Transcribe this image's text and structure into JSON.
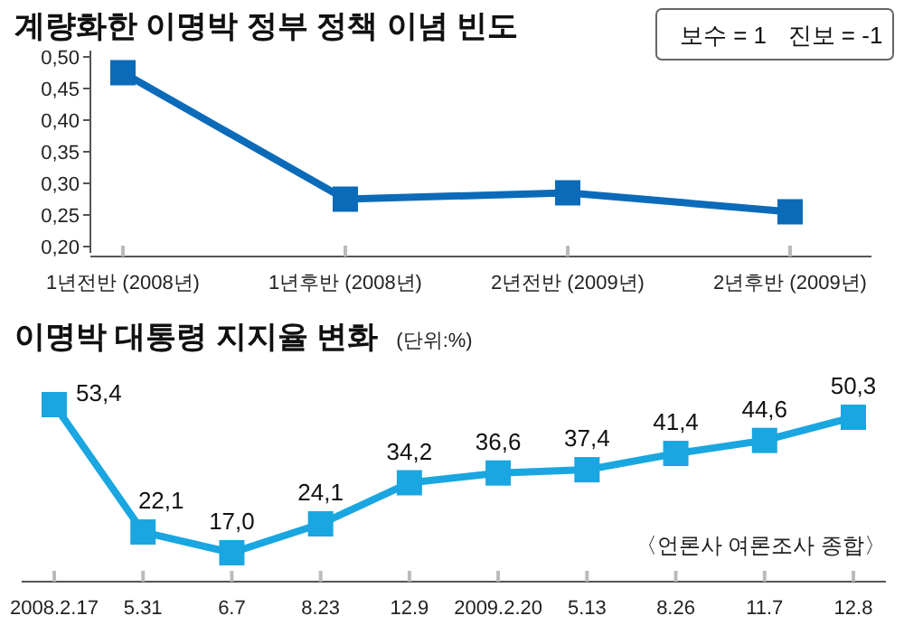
{
  "chart_data": [
    {
      "type": "line",
      "title": "계량화한 이명박 정부 정책 이념 빈도",
      "annotations": [
        "보수 = 1",
        "진보 = -1"
      ],
      "categories": [
        "1년전반 (2008년)",
        "1년후반 (2008년)",
        "2년전반 (2009년)",
        "2년후반 (2009년)"
      ],
      "series": [
        {
          "color": "#0b6bb8",
          "values": [
            0.475,
            0.275,
            0.285,
            0.255
          ]
        }
      ],
      "ylim": [
        0.19,
        0.51
      ],
      "yticks": [
        {
          "value": 0.2,
          "label": "0,20"
        },
        {
          "value": 0.25,
          "label": "0,25"
        },
        {
          "value": 0.3,
          "label": "0,30"
        },
        {
          "value": 0.35,
          "label": "0,35"
        },
        {
          "value": 0.4,
          "label": "0,40"
        },
        {
          "value": 0.45,
          "label": "0,45"
        },
        {
          "value": 0.5,
          "label": "0,50"
        }
      ],
      "marker": "square",
      "line_style": "solid",
      "tick_labels": "xy"
    },
    {
      "type": "line",
      "title": "이명박 대통령 지지율 변화",
      "subtitle": "(단위:%)",
      "annotations": [
        "〈언론사 여론조사 종합〉"
      ],
      "categories": [
        "2008.2.17",
        "5.31",
        "6.7",
        "8.23",
        "12.9",
        "2009.2.20",
        "5.13",
        "8.26",
        "11.7",
        "12.8"
      ],
      "series": [
        {
          "color": "#1aa6e0",
          "values": [
            53.4,
            22.1,
            17.0,
            24.1,
            34.2,
            36.6,
            37.4,
            41.4,
            44.6,
            50.3
          ],
          "value_labels": [
            "53,4",
            "22,1",
            "17,0",
            "24,1",
            "34,2",
            "36,6",
            "37,4",
            "41,4",
            "44,6",
            "50,3"
          ]
        }
      ],
      "marker": "square",
      "line_style": "solid",
      "tick_labels": "x"
    }
  ]
}
